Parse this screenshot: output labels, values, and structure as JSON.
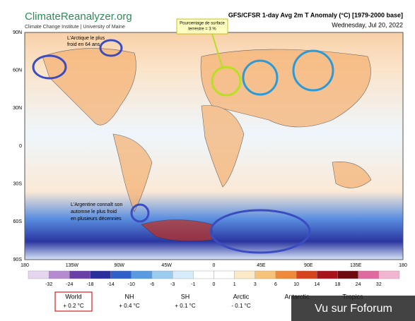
{
  "header": {
    "site": "ClimateReanalyzer.org",
    "institute": "Climate Change Institute | University of Maine",
    "title": "GFS/CFSR 1-day Avg 2m T Anomaly (°C) [1979-2000 base]",
    "date": "Wednesday, Jul 20, 2022"
  },
  "map": {
    "lat_labels": [
      "90N",
      "60N",
      "30N",
      "0",
      "30S",
      "60S",
      "90S"
    ],
    "lon_labels": [
      "180",
      "135W",
      "90W",
      "45W",
      "0",
      "45E",
      "90E",
      "135E",
      "180"
    ]
  },
  "annotations": {
    "arctic": [
      "L'Arctique le plus",
      "froid en 64 ans"
    ],
    "surface": [
      "Pourcentage de surface",
      "terrestre = 3 %"
    ],
    "argentina": [
      "L'Argentine connaît son",
      "automne le plus froid",
      "en plusieurs décennies"
    ]
  },
  "legend": {
    "ticks": [
      "-32",
      "-24",
      "-18",
      "-14",
      "-10",
      "-6",
      "-3",
      "-1",
      "0",
      "1",
      "3",
      "6",
      "10",
      "14",
      "18",
      "24",
      "32"
    ],
    "colors": [
      "#e6d6ef",
      "#b58ad0",
      "#6a3fa8",
      "#2a2f9e",
      "#2f5fc8",
      "#5a9ae0",
      "#9ccbf0",
      "#d6ecfa",
      "#ffffff",
      "#ffffff",
      "#fbe9c8",
      "#f7c27a",
      "#ef8a3a",
      "#d8431f",
      "#a8121b",
      "#6e0b10",
      "#e06aa0",
      "#f2b6d2"
    ]
  },
  "stats": [
    {
      "label": "World",
      "value": "+ 0.2 °C"
    },
    {
      "label": "NH",
      "value": "+ 0.4 °C"
    },
    {
      "label": "SH",
      "value": "+ 0.1 °C"
    },
    {
      "label": "Arctic",
      "value": "- 0.1 °C"
    },
    {
      "label": "Antarctic"
    },
    {
      "label": "Tropics"
    }
  ],
  "watermark": "Vu sur Foforum"
}
